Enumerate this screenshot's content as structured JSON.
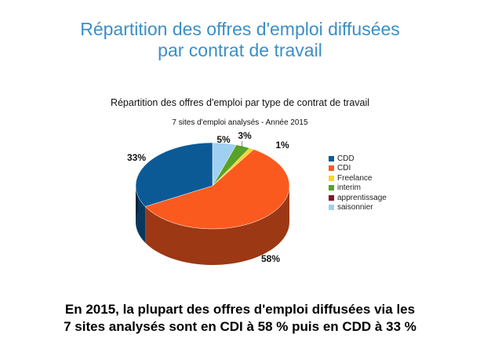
{
  "header": {
    "title_line1": "Répartition des offres d'emploi diffusées",
    "title_line2": "par contrat de travail"
  },
  "chart_data": {
    "type": "pie",
    "style": "3d",
    "title": "Répartition des offres d'emploi par type de contrat de travail",
    "subtitle": "7 sites d'emploi analysés - Année 2015",
    "legend_position": "right",
    "slices": [
      {
        "label": "CDD",
        "value": 33,
        "display": "33%",
        "color": "#0b5a96"
      },
      {
        "label": "CDI",
        "value": 58,
        "display": "58%",
        "color": "#fb5a1f"
      },
      {
        "label": "Freelance",
        "value": 1,
        "display": "1%",
        "color": "#f6d52e"
      },
      {
        "label": "interim",
        "value": 3,
        "display": "3%",
        "color": "#58a227"
      },
      {
        "label": "apprentissage",
        "value": 0,
        "display": "",
        "color": "#8b1128"
      },
      {
        "label": "saisonnier",
        "value": 5,
        "display": "5%",
        "color": "#9fd0f2"
      }
    ]
  },
  "caption": {
    "line1": "En 2015, la plupart des offres d'emploi diffusées via les",
    "line2": "7 sites analysés sont en CDI à 58 % puis en CDD à 33 %"
  }
}
